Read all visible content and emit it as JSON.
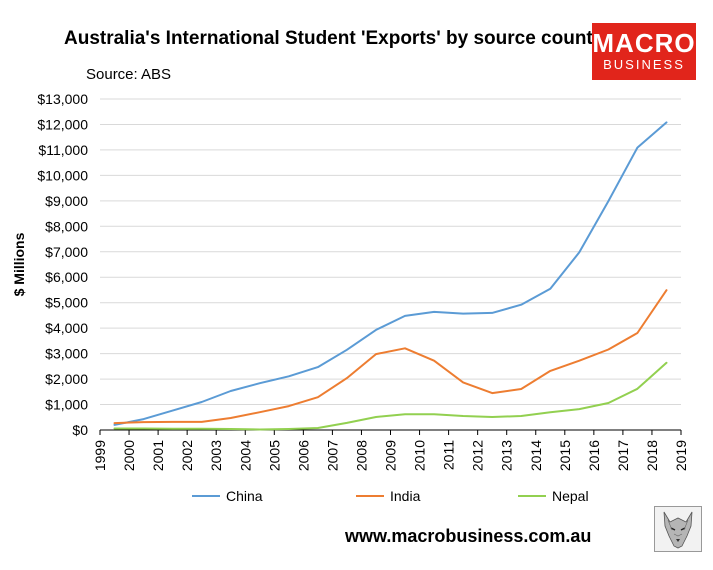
{
  "header": {
    "title": "Australia's International Student 'Exports' by source country",
    "source": "Source: ABS"
  },
  "logo": {
    "line1": "MACRO",
    "line2": "BUSINESS",
    "color": "#e1251b"
  },
  "footer": {
    "website": "www.macrobusiness.com.au"
  },
  "wolf_logo": {
    "icon": "wolf-head-icon"
  },
  "chart_data": {
    "type": "line",
    "title": "Australia's International Student 'Exports' by source country",
    "xlabel": "",
    "ylabel": "$ Millions",
    "xlim": [
      1999,
      2019
    ],
    "ylim": [
      0,
      13000
    ],
    "x_ticks": [
      "1999",
      "2000",
      "2001",
      "2002",
      "2003",
      "2004",
      "2005",
      "2006",
      "2007",
      "2008",
      "2009",
      "2010",
      "2011",
      "2012",
      "2013",
      "2014",
      "2015",
      "2016",
      "2017",
      "2018",
      "2019"
    ],
    "y_ticks": [
      "$0",
      "$1,000",
      "$2,000",
      "$3,000",
      "$4,000",
      "$5,000",
      "$6,000",
      "$7,000",
      "$8,000",
      "$9,000",
      "$10,000",
      "$11,000",
      "$12,000",
      "$13,000"
    ],
    "y_tick_values": [
      0,
      1000,
      2000,
      3000,
      4000,
      5000,
      6000,
      7000,
      8000,
      9000,
      10000,
      11000,
      12000,
      13000
    ],
    "grid": true,
    "legend_position": "bottom",
    "x": [
      1999.5,
      2000.5,
      2001.5,
      2002.5,
      2003.5,
      2004.5,
      2005.5,
      2006.5,
      2007.5,
      2008.5,
      2009.5,
      2010.5,
      2011.5,
      2012.5,
      2013.5,
      2014.5,
      2015.5,
      2016.5,
      2017.5,
      2018.5
    ],
    "series": [
      {
        "name": "China",
        "color": "#5b9bd5",
        "values": [
          200,
          430,
          760,
          1100,
          1530,
          1840,
          2110,
          2470,
          3150,
          3930,
          4480,
          4640,
          4570,
          4600,
          4920,
          5550,
          6980,
          8990,
          11090,
          12080
        ]
      },
      {
        "name": "India",
        "color": "#ed7d31",
        "values": [
          270,
          310,
          320,
          320,
          470,
          700,
          940,
          1290,
          2040,
          2980,
          3210,
          2720,
          1870,
          1450,
          1610,
          2320,
          2720,
          3160,
          3810,
          5490
        ]
      },
      {
        "name": "Nepal",
        "color": "#92d050",
        "values": [
          60,
          60,
          50,
          50,
          40,
          20,
          40,
          80,
          280,
          510,
          620,
          620,
          550,
          510,
          550,
          700,
          820,
          1060,
          1620,
          2640
        ]
      }
    ]
  }
}
